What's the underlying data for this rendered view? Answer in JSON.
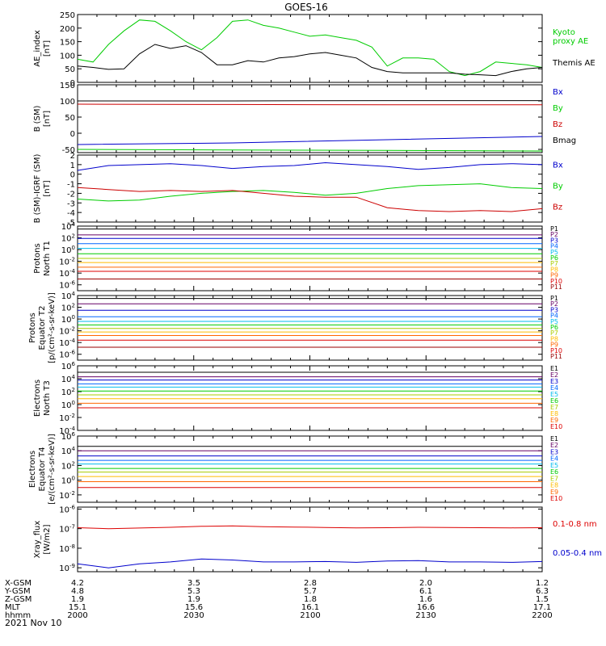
{
  "title": "GOES-16",
  "date_label": "2021 Nov 10",
  "time_axis": {
    "row_labels": [
      "X-GSM",
      "Y-GSM",
      "Z-GSM",
      "MLT",
      "hhmm"
    ],
    "ticks": [
      {
        "values": [
          "4.2",
          "4.8",
          "1.9",
          "15.1",
          "2000"
        ]
      },
      {
        "values": [
          "3.5",
          "5.3",
          "1.9",
          "15.6",
          "2030"
        ]
      },
      {
        "values": [
          "2.8",
          "5.7",
          "1.8",
          "16.1",
          "2100"
        ]
      },
      {
        "values": [
          "2.0",
          "6.1",
          "1.6",
          "16.6",
          "2130"
        ]
      },
      {
        "values": [
          "1.2",
          "6.3",
          "1.5",
          "17.1",
          "2200"
        ]
      }
    ]
  },
  "chart_data": [
    {
      "type": "line",
      "ylabel": "AE_index\n[nT]",
      "ylim": [
        0,
        250
      ],
      "yticks": [
        "0",
        "50",
        "100",
        "150",
        "200",
        "250"
      ],
      "x": [
        0,
        4,
        8,
        12,
        16,
        20,
        24,
        28,
        32,
        36,
        40,
        44,
        48,
        52,
        56,
        60,
        64,
        68,
        72,
        76,
        80,
        84,
        88,
        92,
        96,
        100,
        104,
        108,
        112,
        116,
        120
      ],
      "series": [
        {
          "name": "Kyoto\nproxy AE",
          "color": "#00cc00",
          "values": [
            85,
            75,
            140,
            190,
            230,
            225,
            190,
            150,
            120,
            165,
            225,
            230,
            210,
            200,
            185,
            170,
            175,
            165,
            155,
            130,
            60,
            90,
            90,
            85,
            40,
            25,
            40,
            75,
            70,
            65,
            55
          ]
        },
        {
          "name": "Themis AE",
          "color": "#000000",
          "values": [
            60,
            55,
            48,
            50,
            105,
            140,
            125,
            135,
            110,
            65,
            65,
            80,
            75,
            90,
            95,
            105,
            110,
            100,
            90,
            55,
            40,
            35,
            35,
            35,
            35,
            30,
            28,
            25,
            40,
            50,
            55
          ]
        }
      ]
    },
    {
      "type": "line",
      "ylabel": "B (SM)\n[nT]",
      "ylim": [
        -60,
        150
      ],
      "yticks": [
        "-50",
        "0",
        "50",
        "100",
        "150"
      ],
      "x": [
        0,
        40,
        80,
        120
      ],
      "series": [
        {
          "name": "Bx",
          "color": "#0000cc",
          "values": [
            -35,
            -30,
            -20,
            -10
          ]
        },
        {
          "name": "By",
          "color": "#00cc00",
          "values": [
            -50,
            -52,
            -53,
            -55
          ]
        },
        {
          "name": "Bz",
          "color": "#cc0000",
          "values": [
            90,
            89,
            88,
            88
          ]
        },
        {
          "name": "Bmag",
          "color": "#000000",
          "values": [
            100,
            100,
            101,
            101
          ]
        }
      ]
    },
    {
      "type": "line",
      "ylabel": "B (SM)-IGRF (SM)\n[nT]",
      "ylim": [
        -5,
        2
      ],
      "yticks": [
        "-5",
        "-4",
        "-3",
        "-2",
        "-1",
        "0",
        "1",
        "2"
      ],
      "x": [
        0,
        8,
        16,
        24,
        32,
        40,
        48,
        56,
        64,
        72,
        80,
        88,
        96,
        104,
        112,
        120
      ],
      "series": [
        {
          "name": "Bx",
          "color": "#0000cc",
          "values": [
            0.4,
            0.9,
            1.0,
            1.1,
            0.9,
            0.6,
            0.8,
            0.9,
            1.2,
            1.0,
            0.8,
            0.5,
            0.7,
            1.0,
            1.1,
            1.0
          ]
        },
        {
          "name": "By",
          "color": "#00cc00",
          "values": [
            -2.6,
            -2.8,
            -2.7,
            -2.3,
            -2.0,
            -1.8,
            -1.7,
            -1.9,
            -2.2,
            -2.0,
            -1.5,
            -1.2,
            -1.1,
            -1.0,
            -1.4,
            -1.5
          ]
        },
        {
          "name": "Bz",
          "color": "#cc0000",
          "values": [
            -1.4,
            -1.6,
            -1.8,
            -1.7,
            -1.8,
            -1.7,
            -2.0,
            -2.3,
            -2.4,
            -2.4,
            -3.5,
            -3.8,
            -3.9,
            -3.8,
            -3.9,
            -3.6
          ]
        }
      ]
    },
    {
      "type": "line",
      "ylabel": "Protons\nNorth T1",
      "yscale": "log",
      "ylim": [
        -7,
        4
      ],
      "yticks": [
        "10^4",
        "10^2",
        "10^0",
        "10^-2",
        "10^-4",
        "10^-6"
      ],
      "x": [
        0,
        120
      ],
      "series": [
        {
          "name": "P1",
          "color": "#000000",
          "values": [
            3.5,
            3.5
          ]
        },
        {
          "name": "P2",
          "color": "#660066",
          "values": [
            2.5,
            2.5
          ]
        },
        {
          "name": "P3",
          "color": "#0000cc",
          "values": [
            1.9,
            1.9
          ]
        },
        {
          "name": "P4",
          "color": "#0066ff",
          "values": [
            1.0,
            1.0
          ]
        },
        {
          "name": "P5",
          "color": "#00bbee",
          "values": [
            0.2,
            0.2
          ]
        },
        {
          "name": "P6",
          "color": "#00cc00",
          "values": [
            -0.7,
            -0.7
          ]
        },
        {
          "name": "P7",
          "color": "#aacc00",
          "values": [
            -1.5,
            -1.5
          ]
        },
        {
          "name": "P8",
          "color": "#ffbb00",
          "values": [
            -2.2,
            -2.2
          ]
        },
        {
          "name": "P9",
          "color": "#ff6600",
          "values": [
            -3.0,
            -3.0
          ]
        },
        {
          "name": "P10",
          "color": "#dd0000",
          "values": [
            -3.7,
            -3.7
          ]
        },
        {
          "name": "P11",
          "color": "#990000",
          "values": [
            -5.0,
            -5.0
          ]
        }
      ]
    },
    {
      "type": "line",
      "ylabel": "Protons\nEquator T2\n[p/(cm²-s-sr-keV)]",
      "yscale": "log",
      "ylim": [
        -7,
        4
      ],
      "yticks": [
        "10^4",
        "10^2",
        "10^0",
        "10^-2",
        "10^-4",
        "10^-6"
      ],
      "x": [
        0,
        120
      ],
      "series": [
        {
          "name": "P1",
          "color": "#000000",
          "values": [
            3.5,
            3.5
          ]
        },
        {
          "name": "P2",
          "color": "#660066",
          "values": [
            2.6,
            2.6
          ]
        },
        {
          "name": "P3",
          "color": "#0000cc",
          "values": [
            1.5,
            1.5
          ]
        },
        {
          "name": "P4",
          "color": "#0066ff",
          "values": [
            0.4,
            0.4
          ]
        },
        {
          "name": "P5",
          "color": "#00bbee",
          "values": [
            -0.4,
            -0.4
          ]
        },
        {
          "name": "P6",
          "color": "#00cc00",
          "values": [
            -1.0,
            -1.0
          ]
        },
        {
          "name": "P7",
          "color": "#aacc00",
          "values": [
            -1.6,
            -1.6
          ]
        },
        {
          "name": "P8",
          "color": "#ffbb00",
          "values": [
            -2.2,
            -2.2
          ]
        },
        {
          "name": "P9",
          "color": "#ff6600",
          "values": [
            -2.8,
            -2.8
          ]
        },
        {
          "name": "P10",
          "color": "#dd0000",
          "values": [
            -3.6,
            -3.6
          ]
        },
        {
          "name": "P11",
          "color": "#990000",
          "values": [
            -4.8,
            -4.8
          ]
        }
      ]
    },
    {
      "type": "line",
      "ylabel": "Electrons\nNorth T3",
      "yscale": "log",
      "ylim": [
        -4,
        6
      ],
      "yticks": [
        "10^6",
        "10^4",
        "10^2",
        "10^0",
        "10^-2",
        "10^-4"
      ],
      "x": [
        0,
        120
      ],
      "series": [
        {
          "name": "E1",
          "color": "#000000",
          "values": [
            5.0,
            5.0
          ]
        },
        {
          "name": "E2",
          "color": "#660066",
          "values": [
            4.3,
            4.3
          ]
        },
        {
          "name": "E3",
          "color": "#0000cc",
          "values": [
            3.8,
            3.8
          ]
        },
        {
          "name": "E4",
          "color": "#0066ff",
          "values": [
            3.2,
            3.2
          ]
        },
        {
          "name": "E5",
          "color": "#00bbee",
          "values": [
            2.7,
            2.7
          ]
        },
        {
          "name": "E6",
          "color": "#00cc00",
          "values": [
            2.1,
            2.1
          ]
        },
        {
          "name": "E7",
          "color": "#aacc00",
          "values": [
            1.5,
            1.5
          ]
        },
        {
          "name": "E8",
          "color": "#ffbb00",
          "values": [
            0.9,
            0.9
          ]
        },
        {
          "name": "E9",
          "color": "#ff6600",
          "values": [
            0.2,
            0.2
          ]
        },
        {
          "name": "E10",
          "color": "#dd0000",
          "values": [
            -0.5,
            -0.5
          ]
        }
      ]
    },
    {
      "type": "line",
      "ylabel": "Electrons\nEquator T4\n[e/(cm²-s-sr-keV)]",
      "yscale": "log",
      "ylim": [
        -3,
        6
      ],
      "yticks": [
        "10^6",
        "10^4",
        "10^2",
        "10^0",
        "10^-2"
      ],
      "x": [
        0,
        120
      ],
      "series": [
        {
          "name": "E1",
          "color": "#000000",
          "values": [
            4.6,
            4.6
          ]
        },
        {
          "name": "E2",
          "color": "#660066",
          "values": [
            4.0,
            4.0
          ]
        },
        {
          "name": "E3",
          "color": "#0000cc",
          "values": [
            3.3,
            3.3
          ]
        },
        {
          "name": "E4",
          "color": "#0066ff",
          "values": [
            2.7,
            2.7
          ]
        },
        {
          "name": "E5",
          "color": "#00bbee",
          "values": [
            2.2,
            2.2
          ]
        },
        {
          "name": "E6",
          "color": "#00cc00",
          "values": [
            1.6,
            1.6
          ]
        },
        {
          "name": "E7",
          "color": "#aacc00",
          "values": [
            1.1,
            1.1
          ]
        },
        {
          "name": "E8",
          "color": "#ffbb00",
          "values": [
            0.5,
            0.5
          ]
        },
        {
          "name": "E9",
          "color": "#ff6600",
          "values": [
            -0.2,
            -0.2
          ]
        },
        {
          "name": "E10",
          "color": "#dd0000",
          "values": [
            -1.0,
            -1.0
          ]
        }
      ]
    },
    {
      "type": "line",
      "ylabel": "Xray_flux\n[W/m2]",
      "yscale": "log",
      "ylim": [
        -9.2,
        -5.9
      ],
      "yticks": [
        "10^-6",
        "10^-7",
        "10^-8",
        "10^-9"
      ],
      "x": [
        0,
        8,
        16,
        24,
        32,
        40,
        48,
        56,
        64,
        72,
        80,
        88,
        96,
        104,
        112,
        120
      ],
      "series": [
        {
          "name": "0.1-0.8 nm",
          "color": "#dd0000",
          "values": [
            -6.95,
            -7.0,
            -6.97,
            -6.93,
            -6.88,
            -6.86,
            -6.9,
            -6.92,
            -6.94,
            -6.96,
            -6.95,
            -6.93,
            -6.94,
            -6.95,
            -6.96,
            -6.95
          ]
        },
        {
          "name": "0.05-0.4 nm",
          "color": "#0000cc",
          "values": [
            -8.8,
            -9.0,
            -8.8,
            -8.7,
            -8.55,
            -8.6,
            -8.7,
            -8.7,
            -8.68,
            -8.72,
            -8.65,
            -8.63,
            -8.7,
            -8.7,
            -8.72,
            -8.68
          ]
        }
      ]
    }
  ]
}
